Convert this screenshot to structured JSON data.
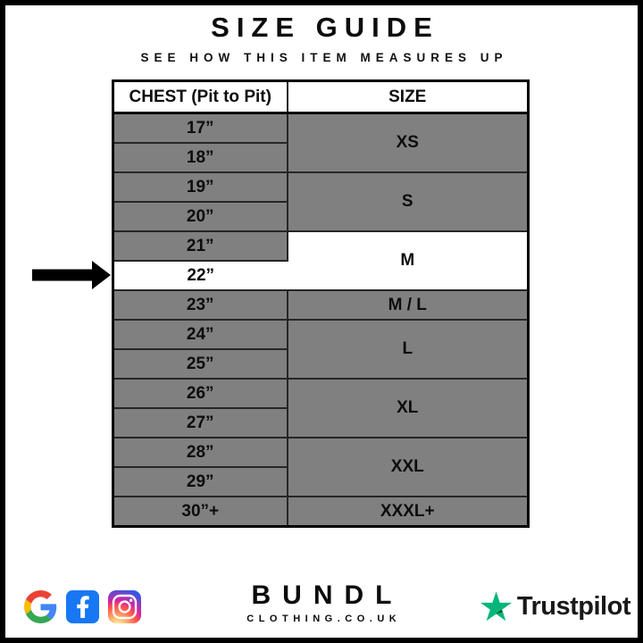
{
  "page": {
    "title": "SIZE GUIDE",
    "subtitle": "SEE HOW THIS ITEM MEASURES UP"
  },
  "chart_data": {
    "type": "table",
    "title": "SIZE GUIDE",
    "subtitle": "SEE HOW THIS ITEM MEASURES UP",
    "columns": [
      "CHEST (Pit to Pit)",
      "SIZE"
    ],
    "rows": [
      [
        "17”",
        "XS"
      ],
      [
        "18”",
        "XS"
      ],
      [
        "19”",
        "S"
      ],
      [
        "20”",
        "S"
      ],
      [
        "21”",
        "M"
      ],
      [
        "22”",
        "M"
      ],
      [
        "23”",
        "M / L"
      ],
      [
        "24”",
        "L"
      ],
      [
        "25”",
        "L"
      ],
      [
        "26”",
        "XL"
      ],
      [
        "27”",
        "XL"
      ],
      [
        "28”",
        "XXL"
      ],
      [
        "29”",
        "XXL"
      ],
      [
        "30”+",
        "XXXL+"
      ]
    ],
    "highlighted_chest": "22”",
    "highlighted_size": "M"
  },
  "table": {
    "headers": {
      "chest": "CHEST (Pit to Pit)",
      "size": "SIZE"
    },
    "groups": [
      {
        "size": "XS",
        "chest": [
          "17”",
          "18”"
        ],
        "highlighted": false
      },
      {
        "size": "S",
        "chest": [
          "19”",
          "20”"
        ],
        "highlighted": false
      },
      {
        "size": "M",
        "chest": [
          "21”",
          "22”"
        ],
        "highlighted": true,
        "highlighted_chest": "22”"
      },
      {
        "size": "M / L",
        "chest": [
          "23”"
        ],
        "highlighted": false
      },
      {
        "size": "L",
        "chest": [
          "24”",
          "25”"
        ],
        "highlighted": false
      },
      {
        "size": "XL",
        "chest": [
          "26”",
          "27”"
        ],
        "highlighted": false
      },
      {
        "size": "XXL",
        "chest": [
          "28”",
          "29”"
        ],
        "highlighted": false
      },
      {
        "size": "XXXL+",
        "chest": [
          "30”+"
        ],
        "highlighted": false
      }
    ],
    "colors": {
      "row_gray": "#808080",
      "highlight": "#ffffff",
      "inner_border": "#262626",
      "outer_border": "#000000"
    }
  },
  "indicator": {
    "target_chest": "22”",
    "arrow_color": "#000000"
  },
  "footer": {
    "brand": {
      "name": "BUNDL",
      "domain": "CLOTHING.CO.UK"
    },
    "social_icons": [
      "google",
      "facebook",
      "instagram"
    ],
    "facebook_color": "#1877F2",
    "trustpilot": {
      "label": "Trustpilot",
      "star_color": "#00B67A",
      "star_shadow_color": "#005128"
    }
  }
}
